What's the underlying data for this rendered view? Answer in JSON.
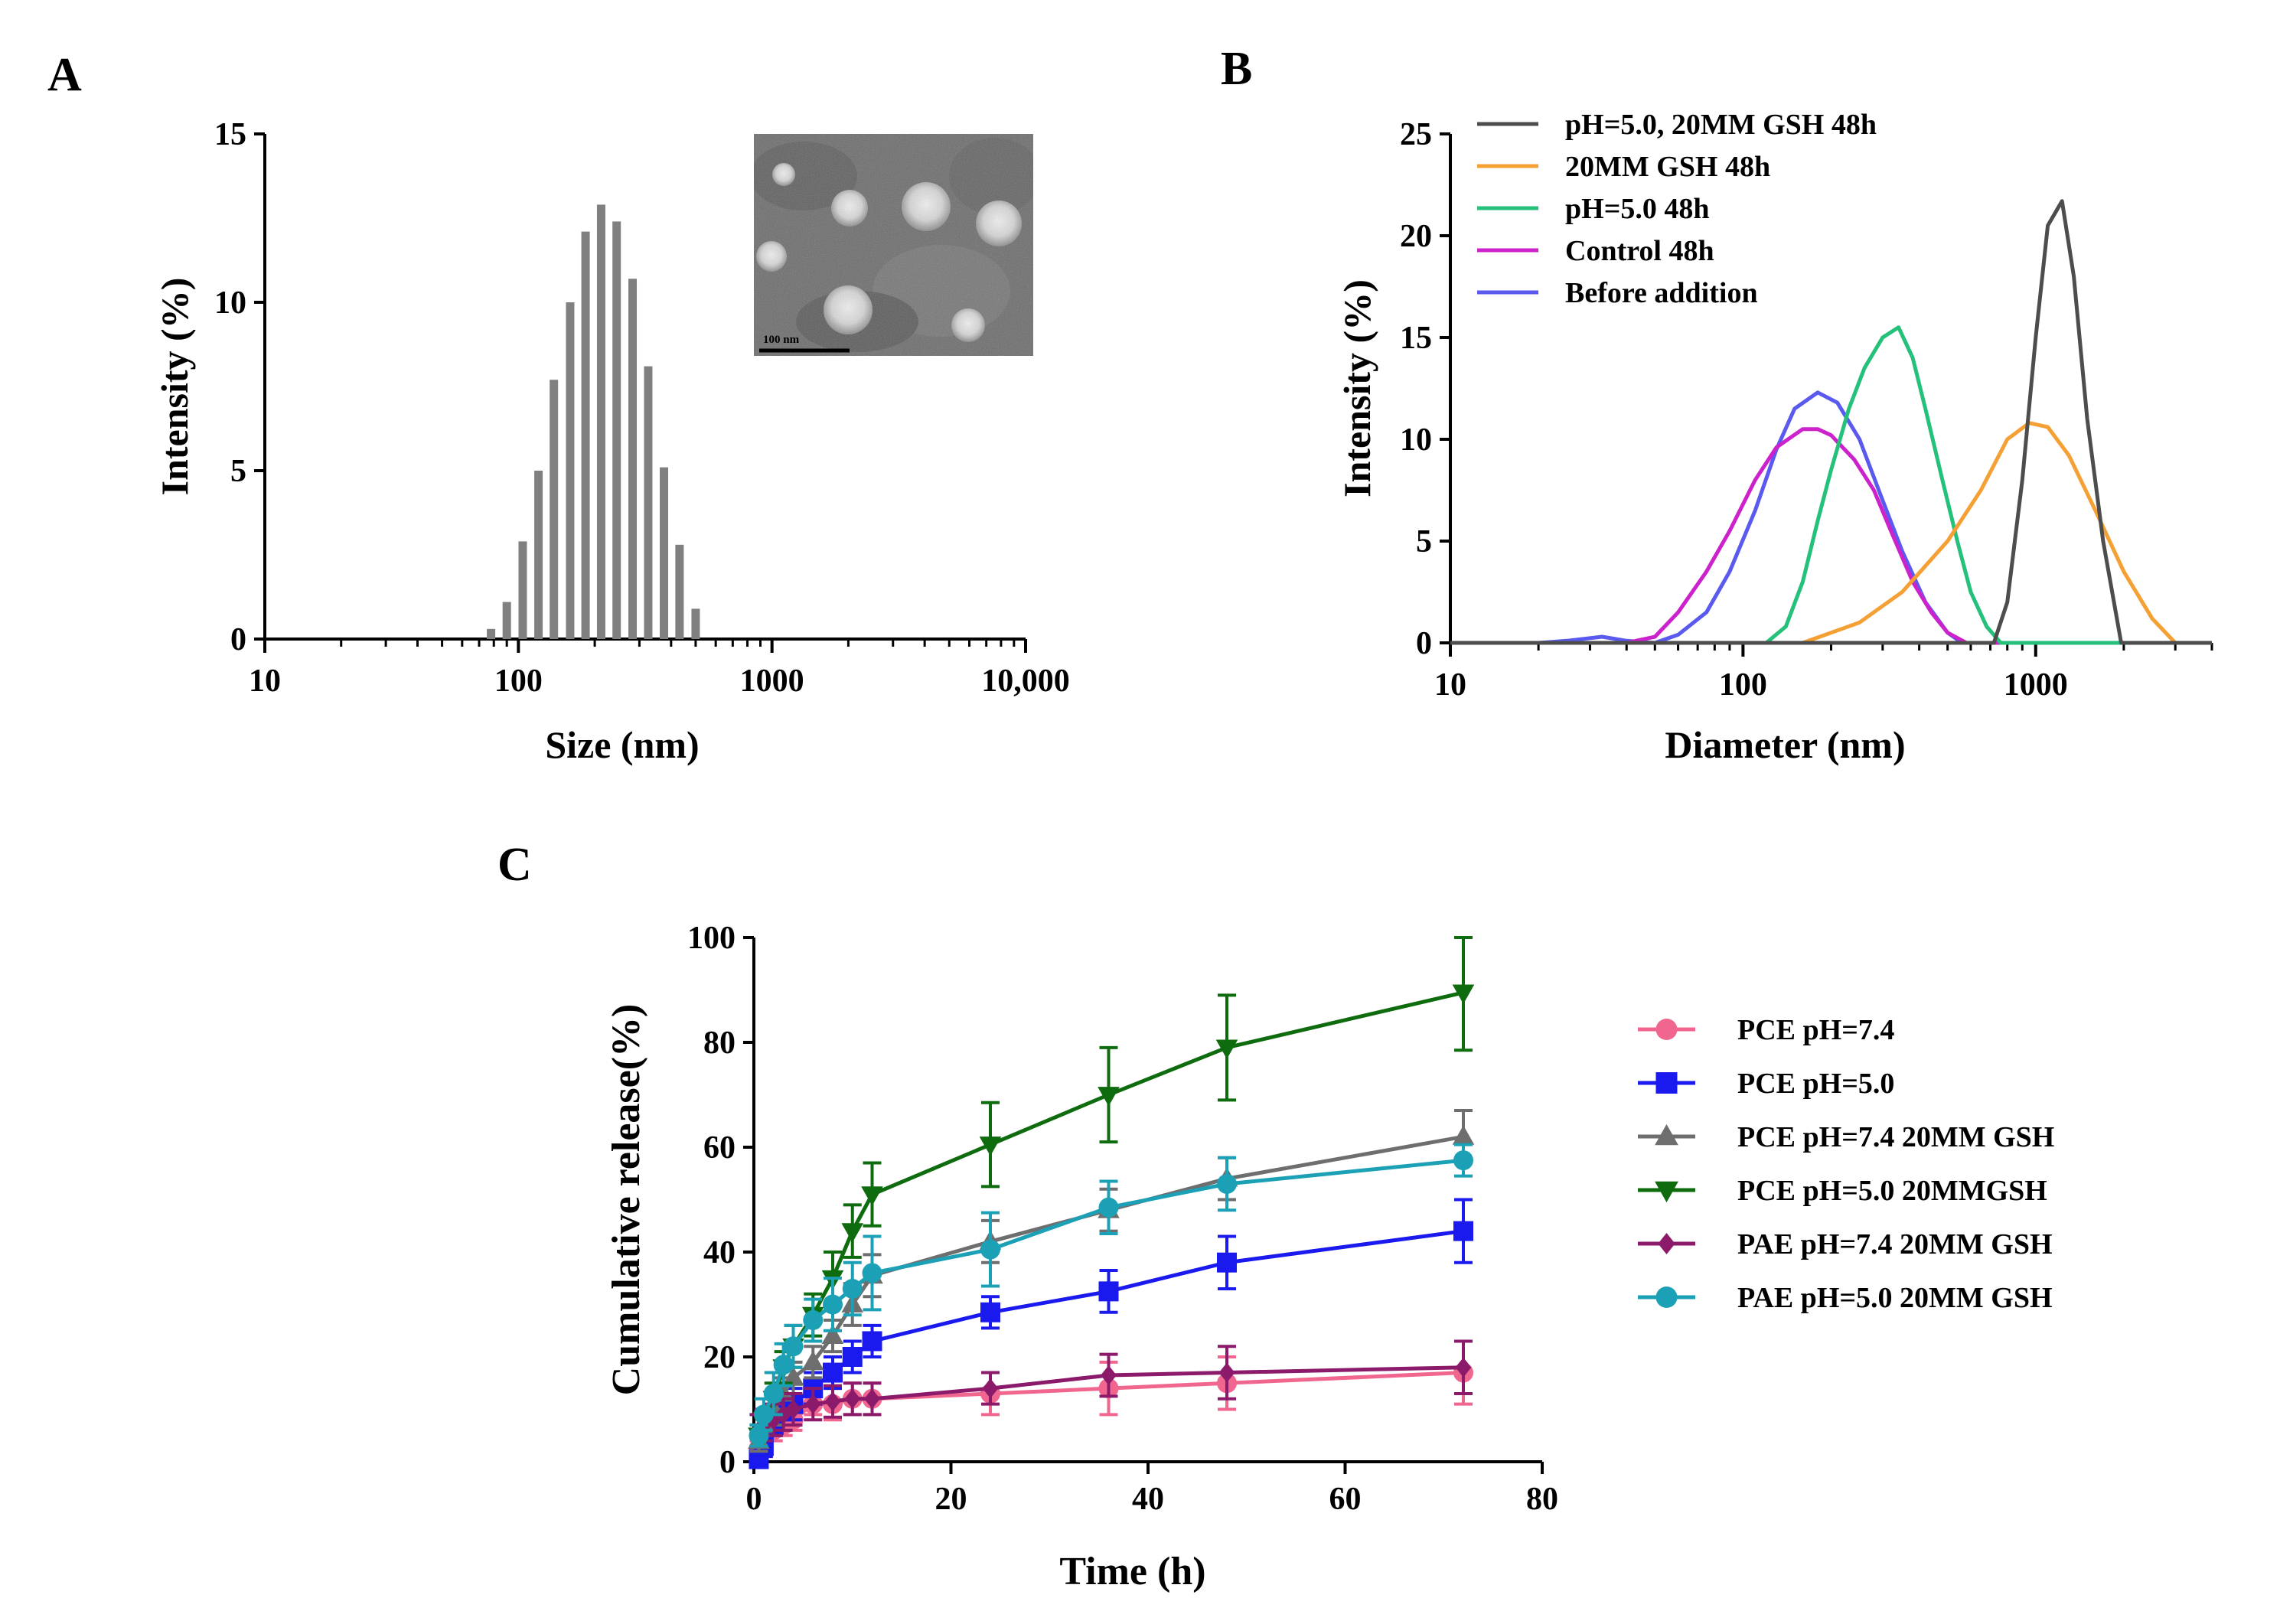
{
  "figure": {
    "panel_labels": {
      "a": "A",
      "b": "B",
      "c": "C"
    }
  },
  "chart_data": [
    {
      "panel": "A",
      "type": "bar",
      "xscale": "log",
      "xlabel": "Size (nm)",
      "ylabel": "Intensity (%)",
      "xlim": [
        10,
        10000
      ],
      "ylim": [
        0,
        15
      ],
      "xticks": [
        10,
        100,
        1000,
        10000
      ],
      "xtick_labels": [
        "10",
        "100",
        "1000",
        "10,000"
      ],
      "yticks": [
        0,
        5,
        10,
        15
      ],
      "ytick_labels": [
        "0",
        "5",
        "10",
        "15"
      ],
      "bar_color": "#808080",
      "categories": [
        78,
        90,
        104,
        120,
        138,
        160,
        184,
        212,
        244,
        282,
        325,
        375,
        432,
        500
      ],
      "values": [
        0.3,
        1.1,
        2.9,
        5.0,
        7.7,
        10.0,
        12.1,
        12.9,
        12.4,
        10.7,
        8.1,
        5.1,
        2.8,
        0.9
      ],
      "inset": {
        "type": "tem-micrograph",
        "scale_bar_label": "100 nm"
      }
    },
    {
      "panel": "B",
      "type": "line",
      "xscale": "log",
      "xlabel": "Diameter (nm)",
      "ylabel": "Intensity (%)",
      "xlim": [
        10,
        4000
      ],
      "ylim": [
        0,
        25
      ],
      "xticks": [
        10,
        100,
        1000
      ],
      "xtick_labels": [
        "10",
        "100",
        "1000"
      ],
      "yticks": [
        0,
        5,
        10,
        15,
        20,
        25
      ],
      "ytick_labels": [
        "0",
        "5",
        "10",
        "15",
        "20",
        "25"
      ],
      "legend_position": "top-left",
      "series": [
        {
          "name": "pH=5.0, 20MM GSH 48h",
          "color": "#4d4d4d",
          "x": [
            10,
            720,
            800,
            900,
            1000,
            1100,
            1230,
            1350,
            1500,
            1700,
            1960,
            4000
          ],
          "y": [
            0,
            0,
            2,
            8,
            15,
            20.5,
            21.7,
            18,
            11,
            5,
            0,
            0
          ]
        },
        {
          "name": "20MM GSH 48h",
          "color": "#f5a035",
          "x": [
            10,
            160,
            250,
            350,
            500,
            650,
            800,
            950,
            1100,
            1300,
            1600,
            2000,
            2500,
            3000,
            4000
          ],
          "y": [
            0,
            0,
            1,
            2.5,
            5,
            7.5,
            10,
            10.8,
            10.6,
            9.2,
            6.5,
            3.5,
            1.2,
            0,
            0
          ]
        },
        {
          "name": " pH=5.0 48h",
          "color": "#25c07a",
          "x": [
            10,
            120,
            140,
            160,
            180,
            200,
            230,
            260,
            300,
            340,
            380,
            420,
            480,
            540,
            600,
            680,
            760,
            4000
          ],
          "y": [
            0,
            0,
            0.8,
            3,
            6,
            8.5,
            11.5,
            13.5,
            15,
            15.5,
            14,
            11.5,
            8,
            5,
            2.5,
            0.8,
            0,
            0
          ]
        },
        {
          "name": "Control 48h",
          "color": "#cc22cc",
          "x": [
            10,
            40,
            50,
            60,
            75,
            90,
            110,
            130,
            160,
            180,
            200,
            240,
            280,
            320,
            380,
            440,
            500,
            580,
            4000
          ],
          "y": [
            0,
            0,
            0.3,
            1.5,
            3.5,
            5.5,
            8,
            9.6,
            10.5,
            10.5,
            10.2,
            9,
            7.5,
            5.5,
            3,
            1.5,
            0.5,
            0,
            0
          ]
        },
        {
          "name": "Before addition",
          "color": "#5a5aee",
          "x": [
            10,
            20,
            25,
            33,
            40,
            50,
            60,
            75,
            90,
            110,
            130,
            150,
            180,
            210,
            250,
            300,
            350,
            420,
            500,
            560,
            4000
          ],
          "y": [
            0,
            0,
            0.1,
            0.3,
            0.1,
            0,
            0.4,
            1.5,
            3.5,
            6.5,
            9.5,
            11.5,
            12.3,
            11.8,
            10,
            7,
            4.5,
            2,
            0.5,
            0,
            0
          ]
        }
      ]
    },
    {
      "panel": "C",
      "type": "line",
      "xlabel": "Time (h)",
      "ylabel": "Cumulative release(%)",
      "xlim": [
        0,
        80
      ],
      "ylim": [
        0,
        100
      ],
      "xticks": [
        0,
        20,
        40,
        60,
        80
      ],
      "xtick_labels": [
        "0",
        "20",
        "40",
        "60",
        "80"
      ],
      "yticks": [
        0,
        20,
        40,
        60,
        80,
        100
      ],
      "ytick_labels": [
        "0",
        "20",
        "40",
        "60",
        "80",
        "100"
      ],
      "legend_position": "right",
      "x": [
        0.5,
        1,
        2,
        3,
        4,
        6,
        8,
        10,
        12,
        24,
        36,
        48,
        72
      ],
      "series": [
        {
          "name": "PCE pH=7.4",
          "color": "#f0668e",
          "marker": "circle",
          "values": [
            2.5,
            4,
            6,
            7,
            8,
            11,
            11,
            12,
            12,
            13,
            14,
            15,
            17
          ],
          "errors": [
            1.5,
            2,
            2,
            2,
            2,
            2,
            3,
            3,
            3,
            4,
            5,
            5,
            6
          ]
        },
        {
          "name": "PCE pH=5.0",
          "color": "#1a1aee",
          "marker": "square",
          "values": [
            0.5,
            3,
            7,
            10,
            11,
            14,
            17,
            20,
            23,
            28.5,
            32.5,
            38,
            44
          ],
          "errors": [
            1,
            2,
            2,
            2,
            3,
            3,
            3,
            3,
            3,
            3,
            4,
            5,
            6
          ]
        },
        {
          "name": "PCE pH=7.4 20MM GSH",
          "color": "#6e6e6e",
          "marker": "triangle",
          "values": [
            4,
            7,
            10,
            13,
            16,
            19,
            24,
            30,
            35.5,
            42,
            48,
            54,
            62
          ],
          "errors": [
            2,
            2,
            3,
            3,
            3,
            3,
            3,
            4,
            4,
            4,
            4,
            4,
            5
          ]
        },
        {
          "name": "PCE pH=5.0 20MMGSH",
          "color": "#0e6b0e",
          "marker": "triangle-down",
          "values": [
            5,
            8,
            12,
            18,
            22,
            28,
            35,
            44,
            51,
            60.5,
            70,
            79,
            89.5
          ],
          "errors": [
            2,
            2,
            3,
            3,
            4,
            4,
            5,
            5,
            6,
            8,
            9,
            10,
            11
          ]
        },
        {
          "name": "PAE pH=7.4 20MM GSH",
          "color": "#8b1a6b",
          "marker": "diamond",
          "values": [
            6,
            7,
            8,
            9,
            10,
            11,
            11.5,
            12,
            12,
            14,
            16.5,
            17,
            18
          ],
          "errors": [
            3,
            3,
            3,
            3,
            3,
            3,
            3,
            3,
            3,
            3,
            4,
            5,
            5
          ]
        },
        {
          "name": "PAE pH=5.0 20MM GSH",
          "color": "#1ca0b5",
          "marker": "circle",
          "values": [
            5,
            9,
            13,
            18.5,
            22,
            27,
            30,
            33,
            36,
            40.5,
            48.5,
            53,
            57.5
          ],
          "errors": [
            2,
            3,
            4,
            4,
            4,
            4,
            5,
            5,
            7,
            7,
            5,
            5,
            3
          ]
        }
      ]
    }
  ]
}
